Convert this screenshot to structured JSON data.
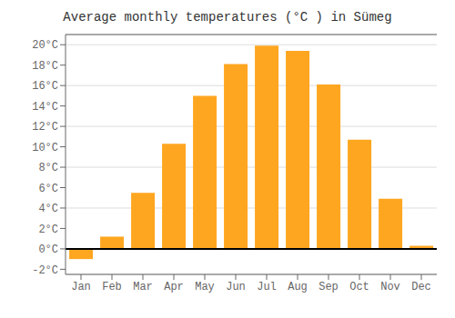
{
  "chart_data": {
    "type": "bar",
    "title": "Average monthly temperatures (°C ) in Sümeg",
    "categories": [
      "Jan",
      "Feb",
      "Mar",
      "Apr",
      "May",
      "Jun",
      "Jul",
      "Aug",
      "Sep",
      "Oct",
      "Nov",
      "Dec"
    ],
    "values": [
      -1.0,
      1.2,
      5.5,
      10.3,
      15.0,
      18.1,
      19.9,
      19.4,
      16.1,
      10.7,
      4.9,
      0.3
    ],
    "color": "#FFA620",
    "ylim": [
      -2.5,
      21
    ],
    "yticks": [
      {
        "value": -2,
        "label": "-2°C"
      },
      {
        "value": 0,
        "label": "0°C"
      },
      {
        "value": 2,
        "label": "2°C"
      },
      {
        "value": 4,
        "label": "4°C"
      },
      {
        "value": 6,
        "label": "6°C"
      },
      {
        "value": 8,
        "label": "8°C"
      },
      {
        "value": 10,
        "label": "10°C"
      },
      {
        "value": 12,
        "label": "12°C"
      },
      {
        "value": 14,
        "label": "14°C"
      },
      {
        "value": 16,
        "label": "16°C"
      },
      {
        "value": 18,
        "label": "18°C"
      },
      {
        "value": 20,
        "label": "20°C"
      }
    ],
    "grid": true
  }
}
